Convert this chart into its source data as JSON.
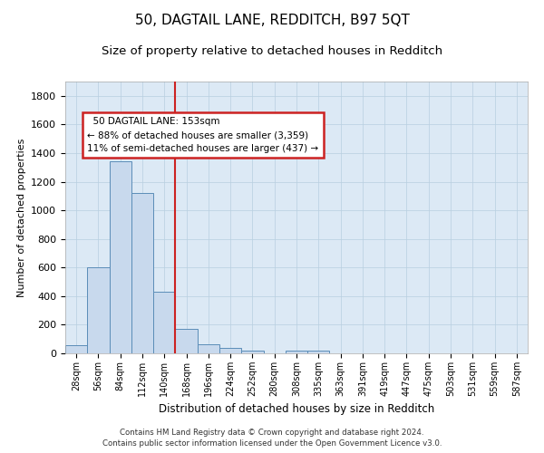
{
  "title": "50, DAGTAIL LANE, REDDITCH, B97 5QT",
  "subtitle": "Size of property relative to detached houses in Redditch",
  "xlabel": "Distribution of detached houses by size in Redditch",
  "ylabel": "Number of detached properties",
  "footer_line1": "Contains HM Land Registry data © Crown copyright and database right 2024.",
  "footer_line2": "Contains public sector information licensed under the Open Government Licence v3.0.",
  "bin_labels": [
    "28sqm",
    "56sqm",
    "84sqm",
    "112sqm",
    "140sqm",
    "168sqm",
    "196sqm",
    "224sqm",
    "252sqm",
    "280sqm",
    "308sqm",
    "335sqm",
    "363sqm",
    "391sqm",
    "419sqm",
    "447sqm",
    "475sqm",
    "503sqm",
    "531sqm",
    "559sqm",
    "587sqm"
  ],
  "bin_values": [
    60,
    600,
    1340,
    1120,
    430,
    170,
    65,
    40,
    20,
    0,
    20,
    20,
    0,
    0,
    0,
    0,
    0,
    0,
    0,
    0,
    0
  ],
  "bar_color": "#c8d9ed",
  "bar_edge_color": "#5b8db8",
  "vline_x": 4.5,
  "vline_color": "#cc2222",
  "annotation_line1": "  50 DAGTAIL LANE: 153sqm",
  "annotation_line2": "← 88% of detached houses are smaller (3,359)",
  "annotation_line3": "11% of semi-detached houses are larger (437) →",
  "annotation_box_color": "#ffffff",
  "annotation_box_edge": "#cc2222",
  "ylim": [
    0,
    1900
  ],
  "yticks": [
    0,
    200,
    400,
    600,
    800,
    1000,
    1200,
    1400,
    1600,
    1800
  ],
  "background_color": "#dce9f5",
  "title_fontsize": 11,
  "subtitle_fontsize": 9.5,
  "ylabel_fontsize": 8,
  "xlabel_fontsize": 8.5,
  "xtick_fontsize": 7,
  "ytick_fontsize": 8
}
